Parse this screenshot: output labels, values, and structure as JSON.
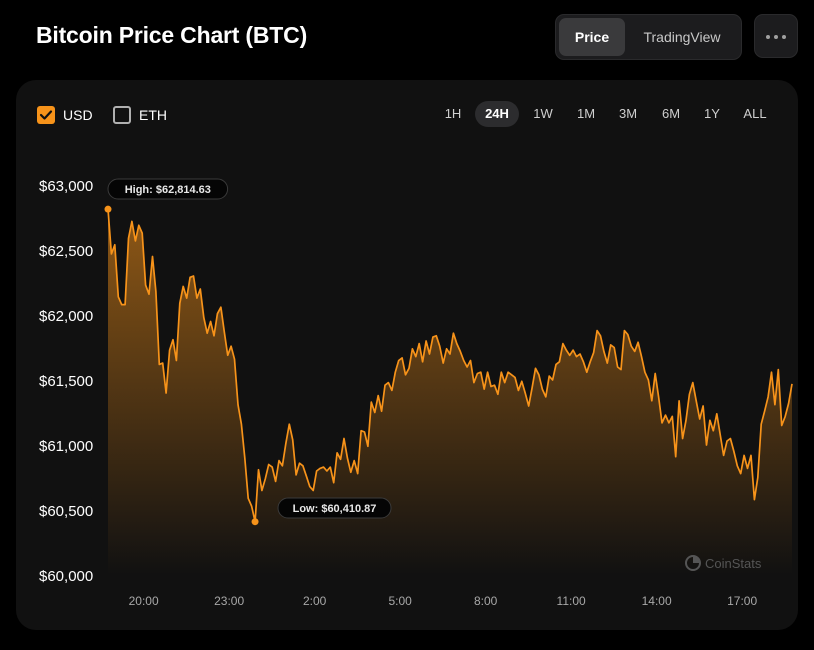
{
  "header": {
    "title": "Bitcoin Price Chart (BTC)"
  },
  "view_toggle": {
    "price": "Price",
    "tradingview": "TradingView",
    "active": "Price"
  },
  "currency_toggles": [
    {
      "label": "USD",
      "checked": true
    },
    {
      "label": "ETH",
      "checked": false
    }
  ],
  "time_ranges": [
    "1H",
    "24H",
    "1W",
    "1M",
    "3M",
    "6M",
    "1Y",
    "ALL"
  ],
  "active_range": "24H",
  "watermark": "CoinStats",
  "colors": {
    "accent": "#f7931a",
    "background": "#000000",
    "card": "#111111"
  },
  "chart_data": {
    "type": "area",
    "series": [
      {
        "values": [
          62814,
          62470,
          62540,
          62140,
          62080,
          62080,
          62590,
          62720,
          62570,
          62690,
          62630,
          62230,
          62160,
          62450,
          62180,
          61620,
          61630,
          61400,
          61730,
          61810,
          61650,
          62090,
          62220,
          62130,
          62290,
          62300,
          62130,
          62200,
          61980,
          61860,
          61950,
          61840,
          62010,
          62060,
          61870,
          61690,
          61760,
          61660,
          61310,
          61160,
          60900,
          60590,
          60530,
          60410,
          60810,
          60650,
          60740,
          60850,
          60830,
          60720,
          60880,
          60840,
          61010,
          61160,
          61040,
          60770,
          60860,
          60840,
          60760,
          60680,
          60650,
          60800,
          60820,
          60830,
          60800,
          60830,
          60710,
          60940,
          60890,
          61050,
          60900,
          60790,
          60880,
          60780,
          61110,
          61100,
          60990,
          61330,
          61250,
          61380,
          61260,
          61460,
          61480,
          61420,
          61560,
          61650,
          61670,
          61540,
          61590,
          61740,
          61680,
          61780,
          61640,
          61800,
          61700,
          61830,
          61840,
          61760,
          61630,
          61740,
          61700,
          61860,
          61780,
          61720,
          61650,
          61600,
          61650,
          61480,
          61550,
          61560,
          61430,
          61560,
          61450,
          61460,
          61390,
          61560,
          61480,
          61560,
          61540,
          61520,
          61420,
          61490,
          61400,
          61300,
          61440,
          61590,
          61540,
          61430,
          61370,
          61530,
          61500,
          61620,
          61640,
          61780,
          61730,
          61690,
          61730,
          61680,
          61700,
          61640,
          61560,
          61640,
          61710,
          61880,
          61840,
          61720,
          61630,
          61770,
          61750,
          61600,
          61580,
          61880,
          61850,
          61760,
          61720,
          61790,
          61680,
          61560,
          61500,
          61340,
          61550,
          61370,
          61170,
          61230,
          61170,
          61220,
          60910,
          61340,
          61050,
          61190,
          61390,
          61480,
          61340,
          61200,
          61300,
          61000,
          61190,
          61110,
          61240,
          61080,
          60920,
          61030,
          61050,
          60950,
          60840,
          60780,
          60920,
          60820,
          60920,
          60580,
          60750,
          61160,
          61260,
          61370,
          61560,
          61310,
          61580,
          61150,
          61220,
          61320,
          61470
        ]
      }
    ],
    "x_ticks": [
      "20:00",
      "23:00",
      "2:00",
      "5:00",
      "8:00",
      "11:00",
      "14:00",
      "17:00"
    ],
    "y_ticks": [
      "$60,000",
      "$60,500",
      "$61,000",
      "$61,500",
      "$62,000",
      "$62,500",
      "$63,000"
    ],
    "ylim": [
      60000,
      63000
    ],
    "annotations": {
      "high": "High: $62,814.63",
      "low": "Low: $60,410.87"
    }
  }
}
